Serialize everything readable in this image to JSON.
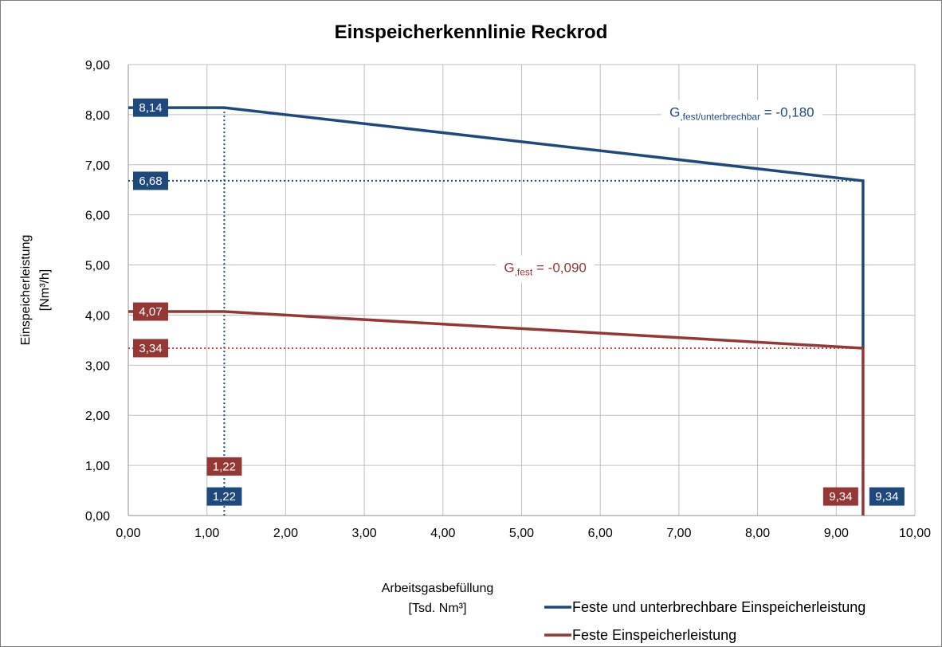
{
  "chart_data": {
    "type": "line",
    "title": "Einspeicherkennlinie Reckrod",
    "xlabel": "Arbeitsgasbefüllung",
    "xlabel_unit": "[Tsd. Nm³]",
    "ylabel": "Einspeicherleistung",
    "ylabel_unit": "[Nm³/h]",
    "xlim": [
      0,
      10
    ],
    "ylim": [
      0,
      9
    ],
    "xticks": [
      "0,00",
      "1,00",
      "2,00",
      "3,00",
      "4,00",
      "5,00",
      "6,00",
      "7,00",
      "8,00",
      "9,00",
      "10,00"
    ],
    "yticks": [
      "0,00",
      "1,00",
      "2,00",
      "3,00",
      "4,00",
      "5,00",
      "6,00",
      "7,00",
      "8,00",
      "9,00"
    ],
    "grid": true,
    "legend_position": "bottom-right",
    "series": [
      {
        "name": "Feste und unterbrechbare Einspeicherleistung",
        "color": "#1f497d",
        "points": [
          [
            0,
            8.14
          ],
          [
            1.22,
            8.14
          ],
          [
            9.34,
            6.68
          ],
          [
            9.34,
            3.34
          ]
        ]
      },
      {
        "name": "Feste Einspeicherleistung",
        "color": "#953735",
        "points": [
          [
            0,
            4.07
          ],
          [
            1.22,
            4.07
          ],
          [
            9.34,
            3.34
          ],
          [
            9.34,
            0
          ]
        ]
      }
    ],
    "reference_lines": [
      {
        "color": "#1f497d",
        "from": [
          0,
          6.68
        ],
        "to": [
          9.34,
          6.68
        ]
      },
      {
        "color": "#1f497d",
        "from": [
          1.22,
          8.14
        ],
        "to": [
          1.22,
          0
        ]
      },
      {
        "color": "#c0504d",
        "from": [
          0,
          3.34
        ],
        "to": [
          9.34,
          3.34
        ]
      }
    ],
    "data_labels": [
      {
        "text": "8,14",
        "color": "#1f497d",
        "x": 0,
        "y": 8.14,
        "anchor": "yaxis"
      },
      {
        "text": "6,68",
        "color": "#1f497d",
        "x": 0,
        "y": 6.68,
        "anchor": "yaxis"
      },
      {
        "text": "4,07",
        "color": "#953735",
        "x": 0,
        "y": 4.07,
        "anchor": "yaxis"
      },
      {
        "text": "3,34",
        "color": "#953735",
        "x": 0,
        "y": 3.34,
        "anchor": "yaxis"
      },
      {
        "text": "1,22",
        "color": "#953735",
        "x": 1.22,
        "y": 0.98,
        "anchor": "center"
      },
      {
        "text": "1,22",
        "color": "#1f497d",
        "x": 1.22,
        "y": 0.38,
        "anchor": "center"
      },
      {
        "text": "9,34",
        "color": "#953735",
        "x": 9.34,
        "y": 0.38,
        "anchor": "left"
      },
      {
        "text": "9,34",
        "color": "#1f497d",
        "x": 9.34,
        "y": 0.38,
        "anchor": "right"
      }
    ],
    "annotations": [
      {
        "main": "G",
        "sub": ",fest/unterbrechbar",
        "rest": " =    -0,180",
        "color": "#1f497d",
        "x": 7.8,
        "y": 8.05
      },
      {
        "main": "G",
        "sub": ",fest",
        "rest": " =      -0,090",
        "color": "#953735",
        "x": 5.3,
        "y": 4.95
      }
    ]
  }
}
